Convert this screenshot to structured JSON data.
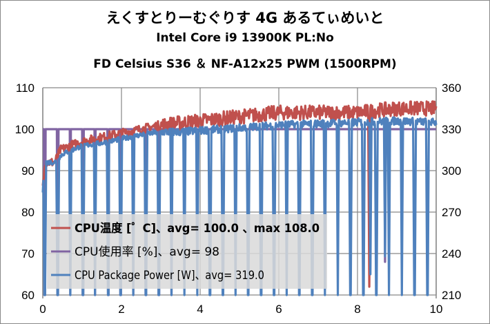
{
  "chart_data": {
    "type": "line",
    "title": "えくすとりーむぐりす 4G あるてぃめいと",
    "subtitle1": "Intel Core i9 13900K PL:No",
    "subtitle2": "FD Celsius S36 ＆ NF-A12x25 PWM (1500RPM)",
    "xlim": [
      0,
      10
    ],
    "ylim_left": [
      60,
      110
    ],
    "ylim_right": [
      210,
      360
    ],
    "x_ticks": [
      "0",
      "2",
      "4",
      "6",
      "8",
      "10"
    ],
    "y_ticks_left": [
      "60",
      "70",
      "80",
      "90",
      "100",
      "110"
    ],
    "y_ticks_right": [
      "210",
      "240",
      "270",
      "300",
      "330",
      "360"
    ],
    "grid": true,
    "legend_position": "bottom-left",
    "series": [
      {
        "name": "CPU温度 [゜C]、avg= 100.0 、max 108.0",
        "axis": "left",
        "color": "#c0504d",
        "baseline": [
          [
            0,
            86
          ],
          [
            0.05,
            92
          ],
          [
            0.3,
            92
          ],
          [
            0.45,
            95
          ],
          [
            0.7,
            96
          ],
          [
            1,
            97
          ],
          [
            1.5,
            98
          ],
          [
            2,
            99
          ],
          [
            2.5,
            100
          ],
          [
            3,
            101
          ],
          [
            3.5,
            101.5
          ],
          [
            4,
            102
          ],
          [
            5,
            103
          ],
          [
            6,
            104
          ],
          [
            7,
            104
          ],
          [
            8,
            104
          ],
          [
            9,
            105
          ],
          [
            10,
            105
          ]
        ],
        "dips": [
          [
            8.3,
            62
          ]
        ]
      },
      {
        "name": "CPU使用率  [%]、avg= 98",
        "axis": "left",
        "color": "#8064a2",
        "baseline": [
          [
            0,
            100
          ],
          [
            10,
            100
          ]
        ],
        "dips": [
          [
            0.05,
            60
          ],
          [
            0.38,
            60
          ],
          [
            0.7,
            60
          ],
          [
            1.02,
            60
          ],
          [
            1.33,
            60
          ],
          [
            1.66,
            60
          ],
          [
            1.98,
            60
          ],
          [
            2.3,
            60
          ],
          [
            2.62,
            60
          ],
          [
            2.95,
            60
          ],
          [
            3.27,
            60
          ],
          [
            8.7,
            68
          ]
        ]
      },
      {
        "name": "CPU Package Power [W]、avg= 319.0",
        "axis": "right",
        "color": "#4f81bd",
        "baseline": [
          [
            0,
            285
          ],
          [
            0.05,
            306
          ],
          [
            0.3,
            306
          ],
          [
            0.5,
            312
          ],
          [
            1,
            318
          ],
          [
            1.5,
            320
          ],
          [
            2,
            323
          ],
          [
            2.5,
            326
          ],
          [
            3,
            328
          ],
          [
            3.5,
            328
          ],
          [
            4,
            329
          ],
          [
            5,
            331
          ],
          [
            6,
            333
          ],
          [
            7,
            334
          ],
          [
            8,
            335
          ],
          [
            9,
            336
          ],
          [
            10,
            335
          ]
        ],
        "dips": [
          [
            0.05,
            210
          ],
          [
            0.38,
            210
          ],
          [
            0.7,
            210
          ],
          [
            1.02,
            210
          ],
          [
            1.33,
            210
          ],
          [
            1.66,
            210
          ],
          [
            1.98,
            210
          ],
          [
            2.3,
            210
          ],
          [
            2.62,
            210
          ],
          [
            2.95,
            210
          ],
          [
            3.27,
            210
          ],
          [
            3.6,
            210
          ],
          [
            3.93,
            210
          ],
          [
            4.25,
            210
          ],
          [
            4.58,
            210
          ],
          [
            4.9,
            210
          ],
          [
            5.22,
            210
          ],
          [
            5.55,
            210
          ],
          [
            5.88,
            210
          ],
          [
            6.2,
            210
          ],
          [
            6.52,
            210
          ],
          [
            6.85,
            210
          ],
          [
            7.17,
            210
          ],
          [
            7.5,
            210
          ],
          [
            7.82,
            210
          ],
          [
            8.15,
            210
          ],
          [
            8.33,
            225
          ],
          [
            8.48,
            210
          ],
          [
            8.7,
            238
          ],
          [
            8.8,
            210
          ],
          [
            9.13,
            210
          ],
          [
            9.45,
            210
          ],
          [
            9.78,
            210
          ]
        ]
      }
    ]
  }
}
